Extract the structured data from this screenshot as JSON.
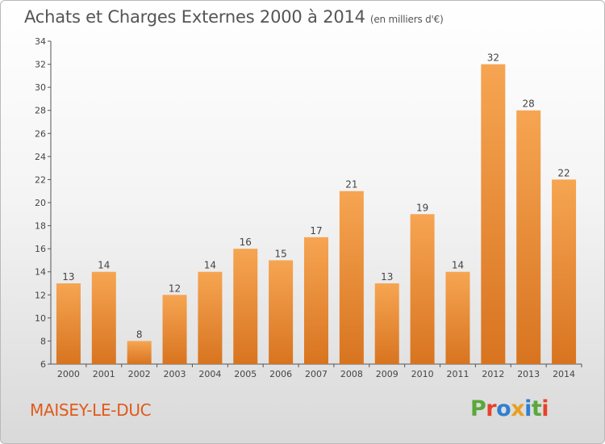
{
  "page": {
    "title": "Achats et Charges Externes 2000 à 2014",
    "unit": "(en milliers d'€)",
    "commune": "MAISEY-LE-DUC",
    "logo": [
      "P",
      "r",
      "o",
      "x",
      "i",
      "t",
      "i"
    ]
  },
  "colors": {
    "bar_light": "#f6a552",
    "bar_dark": "#d87420",
    "logo": [
      "#5aa83c",
      "#e8412c",
      "#2f7fd0",
      "#e8a024",
      "#2f7fd0",
      "#5aa83c",
      "#e8412c"
    ]
  },
  "chart_data": {
    "type": "bar",
    "title": "Achats et Charges Externes 2000 à 2014",
    "subtitle": "(en milliers d'€)",
    "categories": [
      "2000",
      "2001",
      "2002",
      "2003",
      "2004",
      "2005",
      "2006",
      "2007",
      "2008",
      "2009",
      "2010",
      "2011",
      "2012",
      "2013",
      "2014"
    ],
    "values": [
      13,
      14,
      8,
      12,
      14,
      16,
      15,
      17,
      21,
      13,
      19,
      14,
      32,
      28,
      22
    ],
    "ylim": [
      6,
      34
    ],
    "yticks": [
      6,
      8,
      10,
      12,
      14,
      16,
      18,
      20,
      22,
      24,
      26,
      28,
      30,
      32,
      34
    ],
    "grid": false,
    "data_labels": true
  }
}
